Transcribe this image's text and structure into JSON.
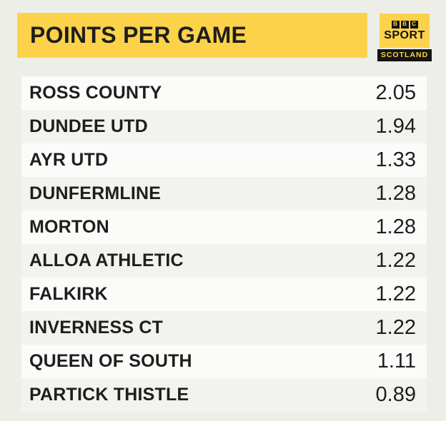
{
  "header": {
    "title": "POINTS PER GAME"
  },
  "logo": {
    "bbc_letters": [
      "B",
      "B",
      "C"
    ],
    "brand": "SPORT",
    "region": "SCOTLAND"
  },
  "table": {
    "rows": [
      {
        "team": "ROSS COUNTY",
        "value": "2.05"
      },
      {
        "team": "DUNDEE UTD",
        "value": "1.94"
      },
      {
        "team": "AYR UTD",
        "value": "1.33"
      },
      {
        "team": "DUNFERMLINE",
        "value": "1.28"
      },
      {
        "team": "MORTON",
        "value": "1.28"
      },
      {
        "team": "ALLOA ATHLETIC",
        "value": "1.22"
      },
      {
        "team": "FALKIRK",
        "value": "1.22"
      },
      {
        "team": "INVERNESS CT",
        "value": "1.22"
      },
      {
        "team": "QUEEN OF SOUTH",
        "value": "1.11"
      },
      {
        "team": "PARTICK THISTLE",
        "value": "0.89"
      }
    ]
  },
  "chart_data": {
    "type": "table",
    "title": "POINTS PER GAME",
    "categories": [
      "ROSS COUNTY",
      "DUNDEE UTD",
      "AYR UTD",
      "DUNFERMLINE",
      "MORTON",
      "ALLOA ATHLETIC",
      "FALKIRK",
      "INVERNESS CT",
      "QUEEN OF SOUTH",
      "PARTICK THISTLE"
    ],
    "values": [
      2.05,
      1.94,
      1.33,
      1.28,
      1.28,
      1.22,
      1.22,
      1.22,
      1.11,
      0.89
    ]
  },
  "colors": {
    "accent_yellow": "#fcd24b",
    "text_black": "#1e1e1c",
    "background": "#edeee8",
    "row_light": "#fbfbfa",
    "row_alt": "#f2f2ef",
    "logo_black": "#141414"
  }
}
